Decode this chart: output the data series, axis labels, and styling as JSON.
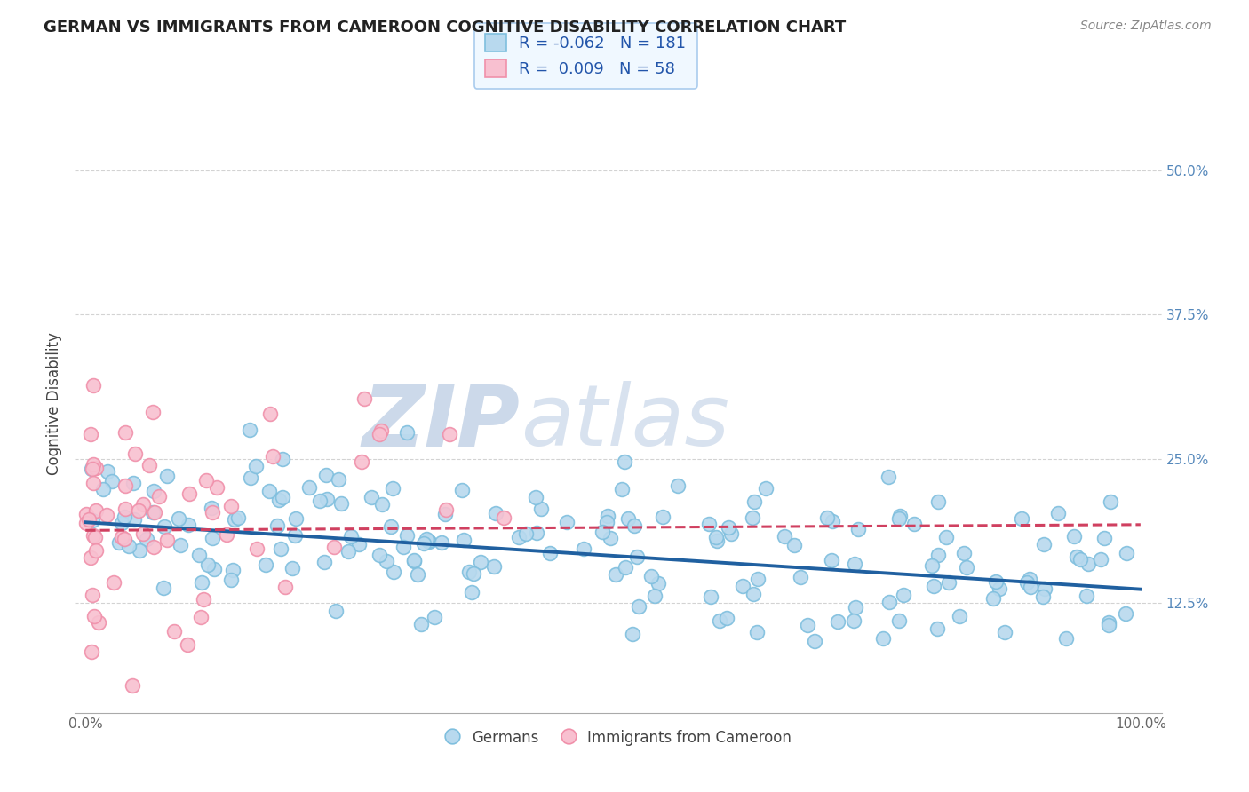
{
  "title": "GERMAN VS IMMIGRANTS FROM CAMEROON COGNITIVE DISABILITY CORRELATION CHART",
  "source": "Source: ZipAtlas.com",
  "xlabel": "",
  "ylabel": "Cognitive Disability",
  "xlim": [
    -0.01,
    1.02
  ],
  "ylim": [
    0.03,
    0.565
  ],
  "yticks": [
    0.125,
    0.25,
    0.375,
    0.5
  ],
  "ytick_labels": [
    "12.5%",
    "25.0%",
    "37.5%",
    "50.0%"
  ],
  "xticks": [
    0.0,
    0.25,
    0.5,
    0.75,
    1.0
  ],
  "xtick_labels": [
    "0.0%",
    "",
    "",
    "",
    "100.0%"
  ],
  "background_color": "#ffffff",
  "grid_color": "#c8c8c8",
  "watermark": "ZIPatlas",
  "watermark_color": "#ccd9ea",
  "legend_R1": "-0.062",
  "legend_N1": "181",
  "legend_R2": "0.009",
  "legend_N2": "58",
  "blue_color": "#7fbfde",
  "blue_fill": "#b8d9ee",
  "pink_color": "#f090aa",
  "pink_fill": "#f8c0d0",
  "blue_line_color": "#2060a0",
  "pink_line_color": "#d04060",
  "title_fontsize": 13,
  "seed": 42,
  "n_blue": 181,
  "n_pink": 58,
  "blue_intercept": 0.195,
  "blue_slope": -0.058,
  "blue_noise": 0.035,
  "pink_intercept": 0.188,
  "pink_slope": 0.005,
  "pink_noise": 0.055
}
